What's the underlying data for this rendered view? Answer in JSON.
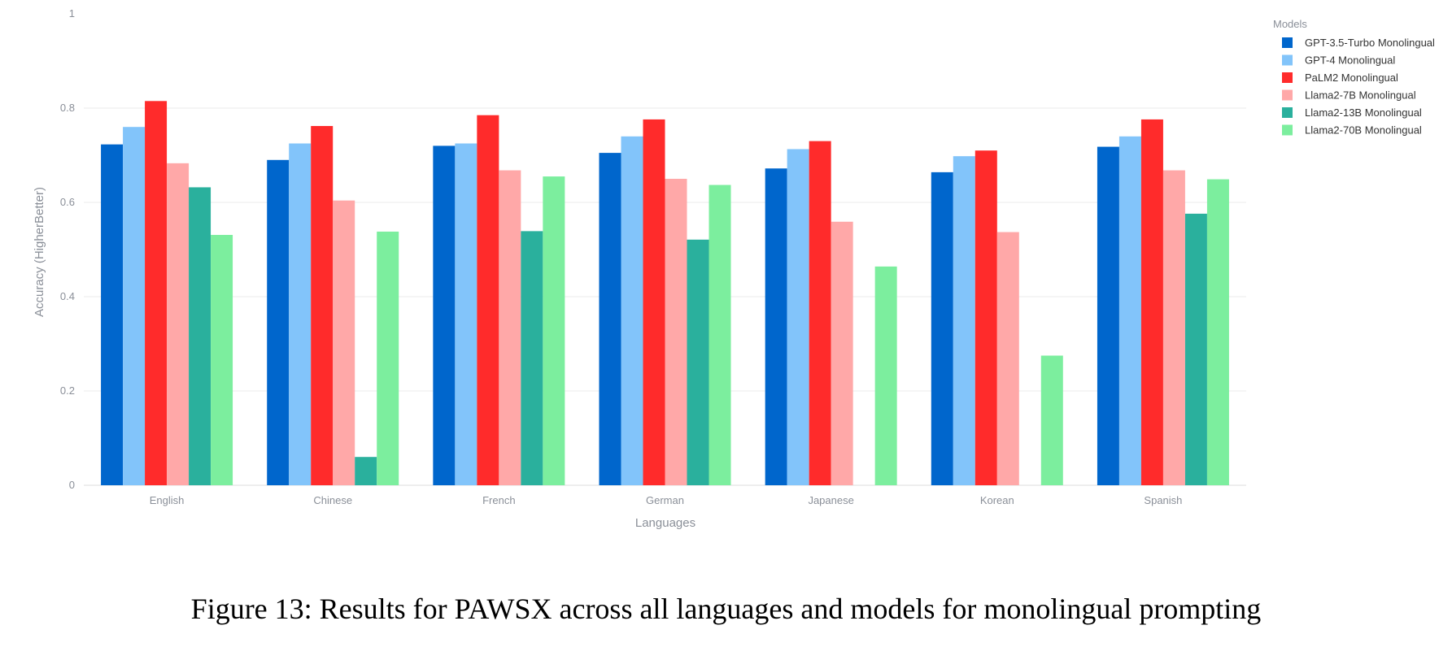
{
  "chart_data": {
    "type": "bar",
    "title": "",
    "xlabel": "Languages",
    "ylabel": "Accuracy (HigherBetter)",
    "ylim": [
      0,
      1
    ],
    "yticks": [
      "0",
      "0.2",
      "0.4",
      "0.6",
      "0.8",
      "1"
    ],
    "grid": true,
    "legend_title": "Models",
    "legend_position": "top-right",
    "categories": [
      "English",
      "Chinese",
      "French",
      "German",
      "Japanese",
      "Korean",
      "Spanish"
    ],
    "series": [
      {
        "name": "GPT-3.5-Turbo Monolingual",
        "color": "#0066cc",
        "values": [
          0.723,
          0.69,
          0.72,
          0.705,
          0.672,
          0.664,
          0.718
        ]
      },
      {
        "name": "GPT-4 Monolingual",
        "color": "#82c4fa",
        "values": [
          0.76,
          0.725,
          0.725,
          0.74,
          0.713,
          0.698,
          0.74
        ]
      },
      {
        "name": "PaLM2 Monolingual",
        "color": "#ff2b2b",
        "values": [
          0.815,
          0.762,
          0.785,
          0.776,
          0.73,
          0.71,
          0.776
        ]
      },
      {
        "name": "Llama2-7B Monolingual",
        "color": "#ffa8a8",
        "values": [
          0.683,
          0.604,
          0.668,
          0.65,
          0.559,
          0.537,
          0.668
        ]
      },
      {
        "name": "Llama2-13B Monolingual",
        "color": "#2ab09d",
        "values": [
          0.632,
          0.06,
          0.539,
          0.521,
          0.0,
          0.0,
          0.576
        ]
      },
      {
        "name": "Llama2-70B Monolingual",
        "color": "#7cee9e",
        "values": [
          0.531,
          0.538,
          0.655,
          0.637,
          0.464,
          0.275,
          0.649
        ]
      }
    ]
  },
  "caption": "Figure 13: Results for PAWSX across all languages and models for monolingual prompting"
}
